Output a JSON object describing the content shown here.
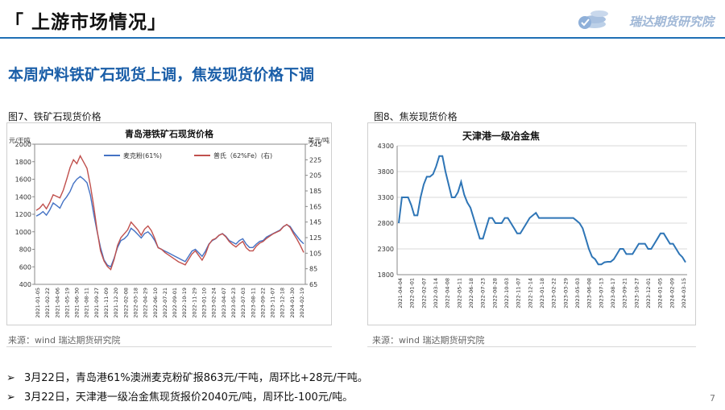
{
  "header": {
    "title": "「 上游市场情况」",
    "logo_text": "瑞达期货研究院"
  },
  "subtitle": "本周炉料铁矿石现货上调，焦炭现货价格下调",
  "left_figure": {
    "label": "图7、铁矿石现货价格",
    "source": "来源：wind   瑞达期货研究院"
  },
  "right_figure": {
    "label": "图8、焦炭现货价格",
    "source": "来源：wind   瑞达期货研究院"
  },
  "bullets": [
    "3月22日，青岛港61%澳洲麦克粉矿报863元/干吨，周环比+28元/干吨。",
    "3月22日，天津港一级冶金焦现货报价2040元/吨，周环比-100元/吨。"
  ],
  "page_number": "7",
  "chart_data": [
    {
      "type": "line",
      "title": "青岛港铁矿石现货价格",
      "ylabel_left": "元/干吨",
      "ylabel_right": "美元/吨",
      "ylim_left": [
        400,
        2000
      ],
      "yticks_left": [
        "400",
        "600",
        "800",
        "1000",
        "1200",
        "1400",
        "1600",
        "1800",
        "2000"
      ],
      "ylim_right": [
        65,
        245
      ],
      "yticks_right": [
        "65",
        "85",
        "105",
        "125",
        "145",
        "165",
        "185",
        "205",
        "225",
        "245"
      ],
      "x_ticks": [
        "2021-01-05",
        "2021-02-22",
        "2021-04-06",
        "2021-05-19",
        "2021-06-30",
        "2021-08-11",
        "2021-09-27",
        "2021-11-09",
        "2021-12-20",
        "2022-02-08",
        "2022-03-18",
        "2022-04-29",
        "2022-06-10",
        "2022-07-21",
        "2022-09-01",
        "2022-10-19",
        "2022-11-29",
        "2023-01-10",
        "2023-02-24",
        "2023-04-07",
        "2023-05-23",
        "2023-07-03",
        "2023-08-11",
        "2023-09-22",
        "2023-11-07",
        "2023-12-18",
        "2024-01-30",
        "2024-02-19"
      ],
      "legend": [
        "麦克粉(61%)",
        "普氏（62%Fe）(右)"
      ],
      "legend_position": "top",
      "grid": false,
      "series": [
        {
          "name": "麦克粉(61%)",
          "axis": "left",
          "color": "#4472c4",
          "values": [
            1180,
            1200,
            1230,
            1190,
            1250,
            1330,
            1300,
            1270,
            1350,
            1400,
            1460,
            1550,
            1600,
            1630,
            1600,
            1560,
            1420,
            1200,
            1000,
            820,
            680,
            620,
            600,
            700,
            820,
            900,
            920,
            960,
            1040,
            1010,
            970,
            930,
            980,
            1000,
            960,
            900,
            820,
            800,
            780,
            760,
            740,
            720,
            700,
            680,
            660,
            720,
            780,
            800,
            760,
            720,
            780,
            860,
            900,
            920,
            960,
            980,
            950,
            900,
            880,
            860,
            900,
            920,
            860,
            820,
            820,
            860,
            890,
            900,
            940,
            960,
            980,
            1000,
            1020,
            1060,
            1080,
            1060,
            1000,
            950,
            900,
            863
          ]
        },
        {
          "name": "普氏（62%Fe）(右)",
          "axis": "right",
          "color": "#c0504d",
          "values": [
            160,
            163,
            168,
            162,
            170,
            180,
            178,
            176,
            186,
            200,
            215,
            225,
            220,
            230,
            222,
            214,
            192,
            165,
            134,
            108,
            95,
            88,
            84,
            97,
            115,
            125,
            130,
            135,
            145,
            140,
            135,
            128,
            136,
            140,
            134,
            124,
            112,
            110,
            106,
            103,
            100,
            97,
            94,
            92,
            90,
            97,
            104,
            108,
            102,
            96,
            104,
            116,
            122,
            124,
            128,
            130,
            126,
            120,
            116,
            113,
            117,
            120,
            112,
            108,
            108,
            114,
            118,
            120,
            124,
            127,
            130,
            132,
            134,
            139,
            142,
            138,
            130,
            123,
            115,
            106
          ]
        }
      ]
    },
    {
      "type": "line",
      "title": "天津港一级冶金焦",
      "ylim": [
        1800,
        4300
      ],
      "yticks": [
        "1800",
        "2300",
        "2800",
        "3300",
        "3800",
        "4300"
      ],
      "x_ticks": [
        "2021-04-04",
        "2022-01-01",
        "2022-02-07",
        "2022-03-14",
        "2022-04-08",
        "2022-05-11",
        "2022-06-18",
        "2022-07-23",
        "2022-08-28",
        "2022-10-03",
        "2022-11-07",
        "2022-12-14",
        "2023-01-18",
        "2023-02-22",
        "2023-03-29",
        "2023-05-03",
        "2023-06-08",
        "2023-07-13",
        "2023-08-17",
        "2023-09-21",
        "2023-10-27",
        "2023-12-01",
        "2024-01-05",
        "2024-02-09",
        "2024-03-15"
      ],
      "series": [
        {
          "name": "",
          "color": "#2e75b6",
          "values": [
            2800,
            3300,
            3300,
            3300,
            3150,
            2950,
            2950,
            3300,
            3550,
            3700,
            3700,
            3750,
            3900,
            4100,
            4100,
            3800,
            3550,
            3300,
            3300,
            3400,
            3600,
            3350,
            3200,
            3100,
            2900,
            2700,
            2500,
            2500,
            2700,
            2900,
            2900,
            2800,
            2800,
            2800,
            2900,
            2900,
            2800,
            2700,
            2600,
            2600,
            2700,
            2800,
            2900,
            2950,
            3000,
            2900,
            2900,
            2900,
            2900,
            2900,
            2900,
            2900,
            2900,
            2900,
            2900,
            2900,
            2900,
            2850,
            2800,
            2700,
            2500,
            2300,
            2150,
            2100,
            2000,
            2000,
            2040,
            2050,
            2050,
            2100,
            2200,
            2300,
            2300,
            2200,
            2200,
            2200,
            2300,
            2400,
            2400,
            2400,
            2300,
            2300,
            2400,
            2500,
            2600,
            2600,
            2500,
            2400,
            2400,
            2300,
            2200,
            2140,
            2040
          ]
        }
      ]
    }
  ]
}
